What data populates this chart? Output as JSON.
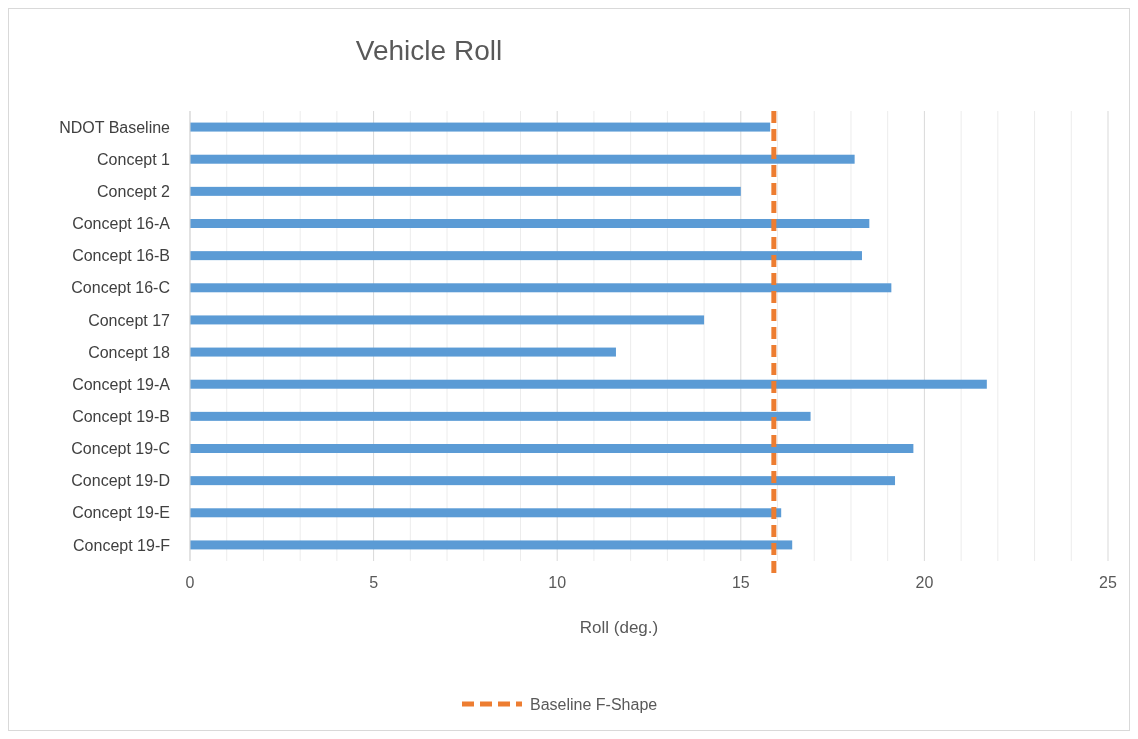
{
  "chart_data": {
    "type": "bar",
    "orientation": "horizontal",
    "title": "Vehicle Roll",
    "xlabel": "Roll (deg.)",
    "categories": [
      "NDOT Baseline",
      "Concept 1",
      "Concept 2",
      "Concept 16-A",
      "Concept 16-B",
      "Concept 16-C",
      "Concept 17",
      "Concept 18",
      "Concept 19-A",
      "Concept 19-B",
      "Concept 19-C",
      "Concept 19-D",
      "Concept 19-E",
      "Concept 19-F"
    ],
    "values": [
      15.8,
      18.1,
      15.0,
      18.5,
      18.3,
      19.1,
      14.0,
      11.6,
      21.7,
      16.9,
      19.7,
      19.2,
      16.1,
      16.4
    ],
    "color": "#5b9bd5",
    "xlim": [
      0,
      25
    ],
    "xticks": [
      0,
      {
        "value": 1,
        "label": null
      },
      {
        "value": 2,
        "label": null
      },
      {
        "value": 3,
        "label": null
      },
      {
        "value": 4,
        "label": null
      },
      5,
      {
        "value": 6,
        "label": null
      },
      {
        "value": 7,
        "label": null
      },
      {
        "value": 8,
        "label": null
      },
      {
        "value": 9,
        "label": null
      },
      10,
      {
        "value": 11,
        "label": null
      },
      {
        "value": 12,
        "label": null
      },
      {
        "value": 13,
        "label": null
      },
      {
        "value": 14,
        "label": null
      },
      15,
      {
        "value": 16,
        "label": null
      },
      {
        "value": 17,
        "label": null
      },
      {
        "value": 18,
        "label": null
      },
      {
        "value": 19,
        "label": null
      },
      20,
      {
        "value": 21,
        "label": null
      },
      {
        "value": 22,
        "label": null
      },
      {
        "value": 23,
        "label": null
      },
      {
        "value": 24,
        "label": null
      },
      25
    ],
    "grid": "x",
    "ref_lines": [
      {
        "axis": "x",
        "value": 15.9,
        "label": "Baseline F-Shape",
        "color": "#ed7d31",
        "line_style": "dashed"
      }
    ],
    "legend": "bottom"
  }
}
